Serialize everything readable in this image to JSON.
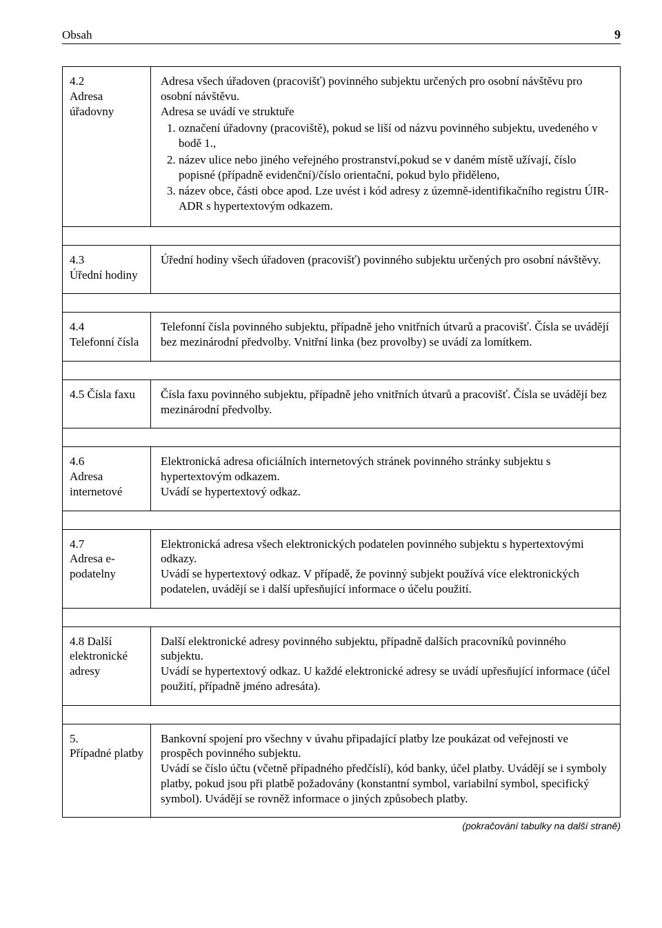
{
  "header": {
    "section_title": "Obsah",
    "page_number": "9"
  },
  "rows": [
    {
      "label": "4.2\nAdresa úřadovny",
      "intro": "Adresa všech úřadoven (pracovišť) povinného subjektu určených pro osobní návštěvu pro osobní návštěvu.\nAdresa se uvádí ve struktuře",
      "list": [
        "označení úřadovny (pracoviště), pokud se liší od názvu povinného subjektu, uvedeného v bodě 1.,",
        "název ulice nebo jiného veřejného prostranství,pokud se v daném místě užívají, číslo popisné (případně evidenční)/číslo orientační, pokud bylo přiděleno,",
        "název obce, části obce apod. Lze uvést i kód adresy z územně-identifikačního registru ÚIR-ADR s hypertextovým odkazem."
      ]
    },
    {
      "label": "4.3\nÚřední hodiny",
      "body": "Úřední hodiny všech úřadoven (pracovišť) povinného subjektu určených pro osobní návštěvy."
    },
    {
      "label": "4.4\nTelefonní čísla",
      "body": "Telefonní čísla povinného subjektu, případně jeho vnitřních útvarů a pracovišť. Čísla se uvádějí bez mezinárodní předvolby. Vnitřní linka (bez provolby) se uvádí za lomítkem."
    },
    {
      "label": "4.5 Čísla faxu",
      "body": "Čísla faxu povinného subjektu, případně jeho vnitřních útvarů a pracovišť. Čísla se uvádějí bez mezinárodní předvolby."
    },
    {
      "label": "4.6\nAdresa internetové",
      "body": "Elektronická adresa oficiálních internetových stránek povinného stránky subjektu s hypertextovým odkazem.\nUvádí se hypertextový odkaz."
    },
    {
      "label": "4.7\nAdresa e-podatelny",
      "body": "Elektronická adresa všech elektronických podatelen povinného subjektu s hypertextovými odkazy.\nUvádí se hypertextový odkaz. V případě, že povinný subjekt používá více elektronických podatelen, uvádějí se i další upřesňující informace o účelu použití."
    },
    {
      "label": "4.8 Další elektronické adresy",
      "body": "Další elektronické adresy povinného subjektu, případně dalších pracovníků povinného subjektu.\nUvádí se hypertextový odkaz. U každé elektronické adresy se uvádí upřesňující informace (účel použití, případně jméno adresáta)."
    },
    {
      "label": "5.\nPřípadné platby",
      "body": "Bankovní spojení pro všechny v úvahu připadající platby lze poukázat od veřejnosti ve prospěch povinného subjektu.\nUvádí se číslo účtu (včetně případného předčíslí), kód banky, účel platby. Uvádějí se i symboly platby, pokud jsou při platbě požadovány (konstantní symbol, variabilní symbol, specifický symbol). Uvádějí se rovněž informace o jiných způsobech platby."
    }
  ],
  "continuation_note": "(pokračování tabulky na další straně)"
}
